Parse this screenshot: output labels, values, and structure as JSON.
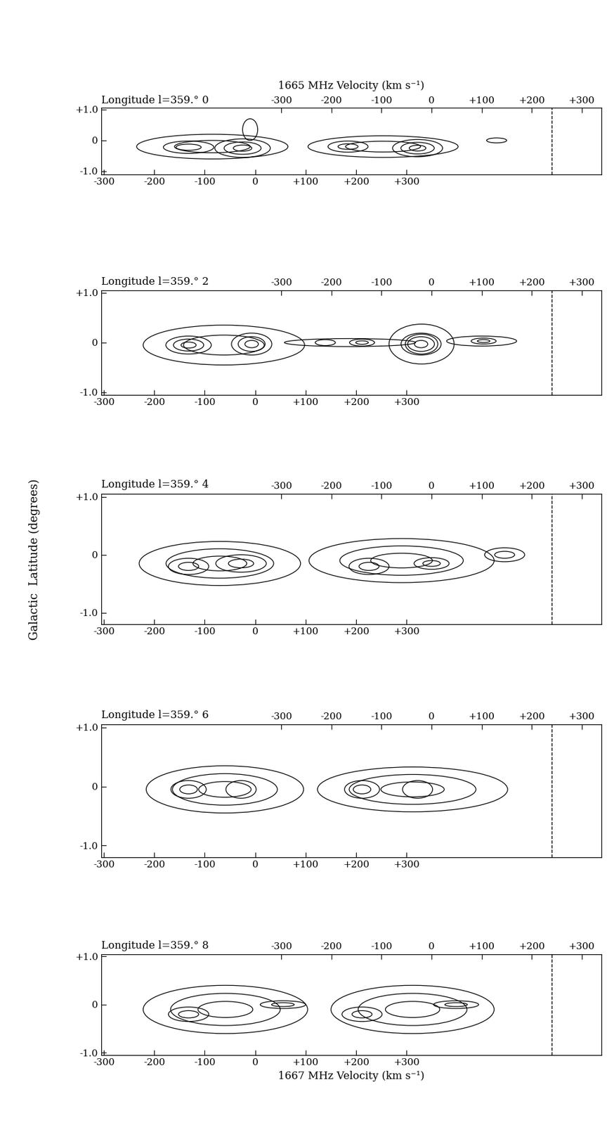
{
  "chart_data": [
    {
      "type": "contour",
      "title": "Longitude l=359.° 0",
      "x2_label": "1665 MHz Velocity (km s⁻¹)",
      "xlim": [
        -305,
        687
      ],
      "xticks": [
        -300,
        -200,
        -100,
        0,
        {
          "value": 100,
          "label": "+100"
        },
        {
          "value": 200,
          "label": "+200"
        },
        {
          "value": 300,
          "label": "+300"
        }
      ],
      "x2lim": [
        -660,
        340
      ],
      "x2ticks": [
        -300,
        -200,
        -100,
        0,
        {
          "value": 100,
          "label": "+100"
        },
        {
          "value": 200,
          "label": "+200"
        },
        {
          "value": 300,
          "label": "+300"
        }
      ],
      "ylim": [
        -1.1,
        1.05
      ],
      "yticks": [
        {
          "value": 1.0,
          "label": "+1.0"
        },
        0,
        -1.0
      ],
      "color": "#000000",
      "reference_lines": [
        {
          "x": 240,
          "axis": "x2",
          "line_style": "dashed"
        }
      ],
      "features": [
        {
          "v": -85,
          "b": -0.2,
          "dv": 150,
          "db": 0.4,
          "levels": 2
        },
        {
          "v": -132,
          "b": -0.22,
          "dv": 50,
          "db": 0.2,
          "levels": 2
        },
        {
          "v": -25,
          "b": -0.25,
          "dv": 55,
          "db": 0.3,
          "levels": 3
        },
        {
          "v": -10,
          "b": 0.35,
          "dv": 15,
          "db": 0.35,
          "levels": 1
        },
        {
          "v": -97,
          "b": -0.2,
          "dv": 150,
          "db": 0.35,
          "levels": 2,
          "axis": "x2"
        },
        {
          "v": -167,
          "b": -0.2,
          "dv": 40,
          "db": 0.18,
          "levels": 2,
          "axis": "x2"
        },
        {
          "v": -28,
          "b": -0.25,
          "dv": 50,
          "db": 0.28,
          "levels": 3,
          "axis": "x2"
        },
        {
          "v": 130,
          "b": 0.0,
          "dv": 20,
          "db": 0.08,
          "levels": 1,
          "axis": "x2"
        }
      ]
    },
    {
      "type": "contour",
      "title": "Longitude l=359.° 2",
      "xlim": [
        -305,
        687
      ],
      "xticks": [
        -300,
        -200,
        -100,
        0,
        {
          "value": 100,
          "label": "+100"
        },
        {
          "value": 200,
          "label": "+200"
        },
        {
          "value": 300,
          "label": "+300"
        }
      ],
      "x2lim": [
        -660,
        340
      ],
      "x2ticks": [
        -300,
        -200,
        -100,
        0,
        {
          "value": 100,
          "label": "+100"
        },
        {
          "value": 200,
          "label": "+200"
        },
        {
          "value": 300,
          "label": "+300"
        }
      ],
      "ylim": [
        -1.05,
        1.05
      ],
      "yticks": [
        {
          "value": 1.0,
          "label": "+1.0"
        },
        0,
        -1.0
      ],
      "color": "#000000",
      "reference_lines": [
        {
          "x": 240,
          "axis": "x2",
          "line_style": "dashed"
        }
      ],
      "features": [
        {
          "v": -62,
          "b": -0.05,
          "dv": 160,
          "db": 0.4,
          "levels": 2
        },
        {
          "v": -132,
          "b": -0.05,
          "dv": 45,
          "db": 0.18,
          "levels": 3
        },
        {
          "v": -7,
          "b": -0.03,
          "dv": 40,
          "db": 0.22,
          "levels": 3
        },
        {
          "v": 188,
          "b": 0.0,
          "dv": 130,
          "db": 0.08,
          "levels": 1
        },
        {
          "v": 139,
          "b": 0.0,
          "dv": 20,
          "db": 0.06,
          "levels": 1
        },
        {
          "v": -20,
          "b": -0.03,
          "dv": 65,
          "db": 0.4,
          "levels": 2,
          "axis": "x2"
        },
        {
          "v": 100,
          "b": 0.03,
          "dv": 70,
          "db": 0.1,
          "levels": 1,
          "axis": "x2"
        },
        {
          "v": 104,
          "b": 0.03,
          "dv": 25,
          "db": 0.06,
          "levels": 2,
          "axis": "x2"
        },
        {
          "v": -21,
          "b": -0.03,
          "dv": 40,
          "db": 0.22,
          "levels": 3,
          "axis": "x2"
        },
        {
          "v": -139,
          "b": 0.0,
          "dv": 25,
          "db": 0.07,
          "levels": 2,
          "axis": "x2"
        }
      ]
    },
    {
      "type": "contour",
      "title": "Longitude l=359.° 4",
      "ylabel": "Galactic  Latitude (degrees)",
      "xlim": [
        -305,
        687
      ],
      "xticks": [
        -300,
        -200,
        -100,
        0,
        {
          "value": 100,
          "label": "+100"
        },
        {
          "value": 200,
          "label": "+200"
        },
        {
          "value": 300,
          "label": "+300"
        }
      ],
      "x2lim": [
        -660,
        340
      ],
      "x2ticks": [
        -300,
        -200,
        -100,
        0,
        {
          "value": 100,
          "label": "+100"
        },
        {
          "value": 200,
          "label": "+200"
        },
        {
          "value": 300,
          "label": "+300"
        }
      ],
      "ylim": [
        -1.2,
        1.05
      ],
      "yticks": [
        {
          "value": 1.0,
          "label": "+1.0"
        },
        0,
        -1.0
      ],
      "color": "#000000",
      "reference_lines": [
        {
          "x": 240,
          "axis": "x2",
          "line_style": "dashed"
        }
      ],
      "features": [
        {
          "v": -70,
          "b": -0.15,
          "dv": 160,
          "db": 0.38,
          "levels": 3
        },
        {
          "v": -132,
          "b": -0.2,
          "dv": 40,
          "db": 0.14,
          "levels": 2
        },
        {
          "v": -28,
          "b": -0.15,
          "dv": 50,
          "db": 0.15,
          "levels": 2
        },
        {
          "v": -60,
          "b": -0.1,
          "dv": 185,
          "db": 0.38,
          "levels": 3,
          "axis": "x2"
        },
        {
          "v": -125,
          "b": -0.2,
          "dv": 40,
          "db": 0.14,
          "levels": 2,
          "axis": "x2"
        },
        {
          "v": 0,
          "b": -0.15,
          "dv": 35,
          "db": 0.1,
          "levels": 2,
          "axis": "x2"
        },
        {
          "v": 146,
          "b": 0.0,
          "dv": 40,
          "db": 0.12,
          "levels": 2,
          "axis": "x2"
        }
      ]
    },
    {
      "type": "contour",
      "title": "Longitude l=359.° 6",
      "xlim": [
        -305,
        687
      ],
      "xticks": [
        -300,
        -200,
        -100,
        0,
        {
          "value": 100,
          "label": "+100"
        },
        {
          "value": 200,
          "label": "+200"
        },
        {
          "value": 300,
          "label": "+300"
        }
      ],
      "x2lim": [
        -660,
        340
      ],
      "x2ticks": [
        -300,
        -200,
        -100,
        0,
        {
          "value": 100,
          "label": "+100"
        },
        {
          "value": 200,
          "label": "+200"
        },
        {
          "value": 300,
          "label": "+300"
        }
      ],
      "ylim": [
        -1.2,
        1.05
      ],
      "yticks": [
        {
          "value": 1.0,
          "label": "+1.0"
        },
        0,
        -1.0
      ],
      "color": "#000000",
      "reference_lines": [
        {
          "x": 240,
          "axis": "x2",
          "line_style": "dashed"
        }
      ],
      "features": [
        {
          "v": -60,
          "b": -0.05,
          "dv": 156,
          "db": 0.4,
          "levels": 3
        },
        {
          "v": -132,
          "b": -0.05,
          "dv": 35,
          "db": 0.15,
          "levels": 2
        },
        {
          "v": -28,
          "b": -0.05,
          "dv": 30,
          "db": 0.15,
          "levels": 1
        },
        {
          "v": -38,
          "b": -0.05,
          "dv": 190,
          "db": 0.38,
          "levels": 3,
          "axis": "x2"
        },
        {
          "v": -139,
          "b": -0.05,
          "dv": 35,
          "db": 0.15,
          "levels": 2,
          "axis": "x2"
        },
        {
          "v": -28,
          "b": -0.05,
          "dv": 30,
          "db": 0.15,
          "levels": 1,
          "axis": "x2"
        }
      ]
    },
    {
      "type": "contour",
      "title": "Longitude l=359.° 8",
      "xlabel": "1667 MHz Velocity (km s⁻¹)",
      "xlim": [
        -305,
        687
      ],
      "xticks": [
        -300,
        -200,
        -100,
        0,
        {
          "value": 100,
          "label": "+100"
        },
        {
          "value": 200,
          "label": "+200"
        },
        {
          "value": 300,
          "label": "+300"
        }
      ],
      "x2lim": [
        -660,
        340
      ],
      "x2ticks": [
        -300,
        -200,
        -100,
        0,
        {
          "value": 100,
          "label": "+100"
        },
        {
          "value": 200,
          "label": "+200"
        },
        {
          "value": 300,
          "label": "+300"
        }
      ],
      "ylim": [
        -1.05,
        1.05
      ],
      "yticks": [
        {
          "value": 1.0,
          "label": "+1.0"
        },
        0,
        -1.0
      ],
      "color": "#000000",
      "reference_lines": [
        {
          "x": 240,
          "axis": "x2",
          "line_style": "dashed"
        }
      ],
      "features": [
        {
          "v": -59,
          "b": -0.1,
          "dv": 163,
          "db": 0.5,
          "levels": 3
        },
        {
          "v": -132,
          "b": -0.2,
          "dv": 40,
          "db": 0.15,
          "levels": 2
        },
        {
          "v": 55,
          "b": 0.0,
          "dv": 45,
          "db": 0.08,
          "levels": 2
        },
        {
          "v": -38,
          "b": -0.1,
          "dv": 163,
          "db": 0.5,
          "levels": 3,
          "axis": "x2"
        },
        {
          "v": -139,
          "b": -0.2,
          "dv": 40,
          "db": 0.15,
          "levels": 2,
          "axis": "x2"
        },
        {
          "v": 49,
          "b": 0.0,
          "dv": 45,
          "db": 0.08,
          "levels": 2,
          "axis": "x2"
        }
      ]
    }
  ]
}
